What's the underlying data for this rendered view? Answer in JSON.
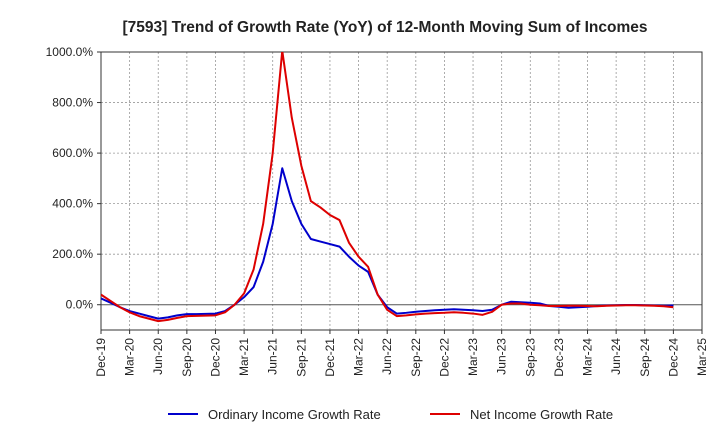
{
  "chart_data": {
    "type": "line",
    "title": "[7593]  Trend of Growth Rate (YoY) of 12-Month Moving Sum of Incomes",
    "xlabel": "",
    "ylabel": "",
    "ylim": [
      -100,
      1000
    ],
    "yticks": [
      0,
      200,
      400,
      600,
      800,
      1000
    ],
    "ytick_labels": [
      "0.0%",
      "200.0%",
      "400.0%",
      "600.0%",
      "800.0%",
      "1000.0%"
    ],
    "x_tick_labels": [
      "Dec-19",
      "Mar-20",
      "Jun-20",
      "Sep-20",
      "Dec-20",
      "Mar-21",
      "Jun-21",
      "Sep-21",
      "Dec-21",
      "Mar-22",
      "Jun-22",
      "Sep-22",
      "Dec-22",
      "Mar-23",
      "Jun-23",
      "Sep-23",
      "Dec-23",
      "Mar-24",
      "Jun-24",
      "Sep-24",
      "Dec-24",
      "Mar-25"
    ],
    "grid": true,
    "legend_position": "bottom",
    "x": [
      "Dec-19",
      "Jan-20",
      "Feb-20",
      "Mar-20",
      "Apr-20",
      "May-20",
      "Jun-20",
      "Jul-20",
      "Aug-20",
      "Sep-20",
      "Oct-20",
      "Nov-20",
      "Dec-20",
      "Jan-21",
      "Feb-21",
      "Mar-21",
      "Apr-21",
      "May-21",
      "Jun-21",
      "Jul-21",
      "Aug-21",
      "Sep-21",
      "Oct-21",
      "Nov-21",
      "Dec-21",
      "Jan-22",
      "Feb-22",
      "Mar-22",
      "Apr-22",
      "May-22",
      "Jun-22",
      "Jul-22",
      "Aug-22",
      "Sep-22",
      "Oct-22",
      "Nov-22",
      "Dec-22",
      "Jan-23",
      "Feb-23",
      "Mar-23",
      "Apr-23",
      "May-23",
      "Jun-23",
      "Jul-23",
      "Aug-23",
      "Sep-23",
      "Oct-23",
      "Nov-23",
      "Dec-23",
      "Jan-24",
      "Feb-24",
      "Mar-24",
      "Apr-24",
      "May-24",
      "Jun-24",
      "Jul-24",
      "Aug-24",
      "Sep-24",
      "Oct-24",
      "Nov-24",
      "Dec-24"
    ],
    "series": [
      {
        "name": "Ordinary Income Growth Rate",
        "color": "#0000cc",
        "values": [
          25,
          8,
          -10,
          -25,
          -35,
          -45,
          -55,
          -50,
          -42,
          -37,
          -37,
          -36,
          -35,
          -25,
          0,
          30,
          70,
          170,
          320,
          540,
          410,
          320,
          260,
          250,
          240,
          230,
          190,
          155,
          130,
          40,
          -10,
          -35,
          -32,
          -28,
          -25,
          -22,
          -20,
          -18,
          -20,
          -22,
          -25,
          -20,
          0,
          12,
          10,
          8,
          5,
          -5,
          -8,
          -12,
          -10,
          -8,
          -5,
          -3,
          -2,
          -1,
          -1,
          -2,
          -3,
          -4,
          -3
        ]
      },
      {
        "name": "Net Income Growth Rate",
        "color": "#dd0000",
        "values": [
          40,
          15,
          -10,
          -30,
          -45,
          -55,
          -65,
          -60,
          -52,
          -45,
          -44,
          -43,
          -42,
          -30,
          0,
          45,
          140,
          320,
          600,
          1050,
          740,
          550,
          410,
          385,
          355,
          335,
          245,
          190,
          150,
          40,
          -20,
          -45,
          -42,
          -38,
          -35,
          -33,
          -32,
          -30,
          -32,
          -35,
          -40,
          -28,
          0,
          5,
          5,
          0,
          -2,
          -5,
          -5,
          -4,
          -4,
          -5,
          -6,
          -4,
          -3,
          -2,
          -2,
          -3,
          -4,
          -6,
          -10
        ]
      }
    ]
  }
}
